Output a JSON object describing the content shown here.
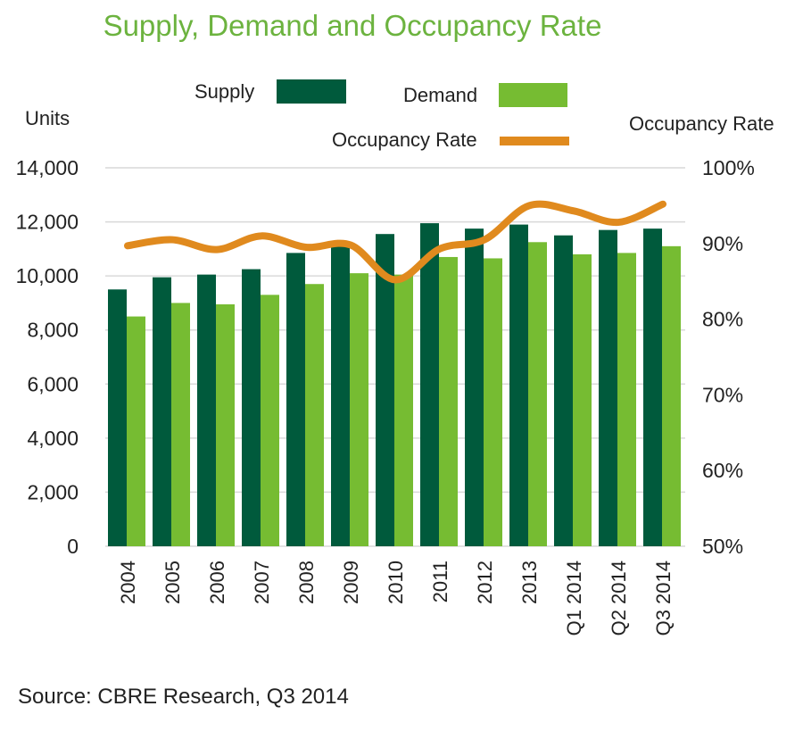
{
  "chart_data": {
    "type": "bar",
    "title": "Supply, Demand and Occupancy Rate",
    "ylabel": "Units",
    "y2label": "Occupancy Rate",
    "ylim": [
      0,
      14000
    ],
    "y2lim": [
      50,
      100
    ],
    "yticks": [
      "0",
      "2,000",
      "4,000",
      "6,000",
      "8,000",
      "10,000",
      "12,000",
      "14,000"
    ],
    "y2ticks": [
      "50%",
      "60%",
      "70%",
      "80%",
      "90%",
      "100%"
    ],
    "categories": [
      "2004",
      "2005",
      "2006",
      "2007",
      "2008",
      "2009",
      "2010",
      "2011",
      "2012",
      "2013",
      "Q1 2014",
      "Q2 2014",
      "Q3 2014"
    ],
    "series": [
      {
        "name": "Supply",
        "kind": "bar",
        "axis": "left",
        "values": [
          9500,
          9950,
          10050,
          10250,
          10850,
          11100,
          11550,
          11950,
          11750,
          11900,
          11500,
          11700,
          11750
        ]
      },
      {
        "name": "Demand",
        "kind": "bar",
        "axis": "left",
        "values": [
          8500,
          9000,
          8950,
          9300,
          9700,
          10100,
          10050,
          10700,
          10650,
          11250,
          10800,
          10850,
          11100
        ]
      },
      {
        "name": "Occupancy Rate",
        "kind": "line",
        "axis": "right",
        "values": [
          89.7,
          90.5,
          89.2,
          91.0,
          89.5,
          89.8,
          85.2,
          89.3,
          90.5,
          95.0,
          94.3,
          92.8,
          95.2
        ]
      }
    ],
    "legend_position": "top",
    "grid": true,
    "source": "Source: CBRE Research, Q3 2014"
  },
  "colors": {
    "title": "#6cb33f",
    "supply": "#005a3c",
    "demand": "#76bc32",
    "occupancy": "#e08a1e",
    "grid": "#d9d9d9",
    "text": "#222222"
  }
}
